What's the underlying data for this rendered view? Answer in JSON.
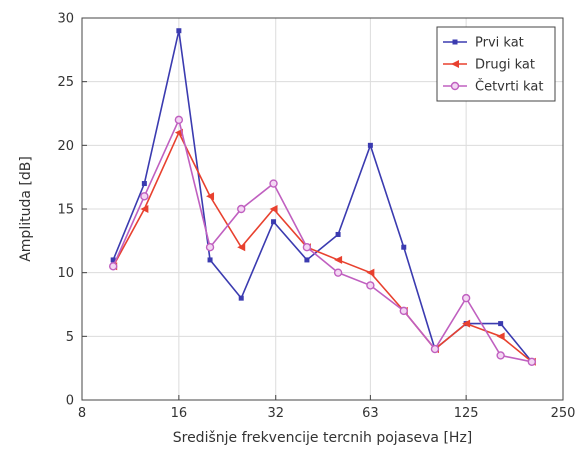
{
  "chart_data": {
    "type": "line",
    "xlabel": "Središnje frekvencije tercnih pojaseva [Hz]",
    "ylabel": "Amplituda [dB]",
    "x_scale": "log2",
    "xlim": [
      8,
      250
    ],
    "ylim": [
      0,
      30
    ],
    "x_ticks": [
      8,
      16,
      32,
      63,
      125,
      250
    ],
    "x_tick_labels": [
      "8",
      "16",
      "32",
      "63",
      "125",
      "250"
    ],
    "y_ticks": [
      0,
      5,
      10,
      15,
      20,
      25,
      30
    ],
    "y_tick_labels": [
      "0",
      "5",
      "10",
      "15",
      "20",
      "25",
      "30"
    ],
    "grid": true,
    "legend_position": "top-right",
    "x": [
      10,
      12.5,
      16,
      20,
      25,
      31.5,
      40,
      50,
      63,
      80,
      100,
      125,
      160,
      200
    ],
    "series": [
      {
        "name": "Prvi kat",
        "color": "#3b3bb0",
        "marker": "square",
        "values": [
          11,
          17,
          29,
          11,
          8,
          14,
          11,
          13,
          20,
          12,
          4,
          6,
          6,
          3
        ]
      },
      {
        "name": "Drugi kat",
        "color": "#e8412f",
        "marker": "triangle",
        "values": [
          10.5,
          15,
          21,
          16,
          12,
          15,
          12,
          11,
          10,
          7,
          4,
          6,
          5,
          3
        ]
      },
      {
        "name": "Četvrti kat",
        "color": "#c060c0",
        "marker": "circle",
        "values": [
          10.5,
          16,
          22,
          12,
          15,
          17,
          12,
          10,
          9,
          7,
          4,
          8,
          3.5,
          3
        ]
      }
    ]
  }
}
